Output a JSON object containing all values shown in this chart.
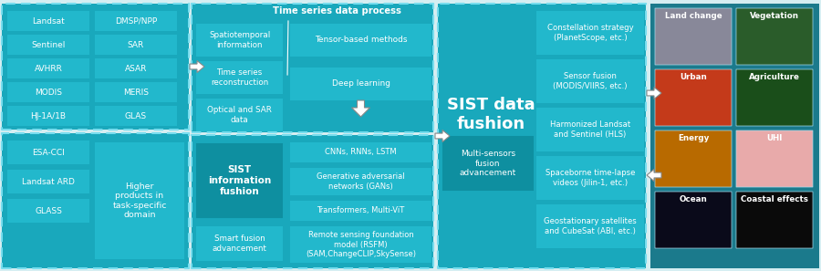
{
  "bg_color": "#d6eef2",
  "teal_bg": "#19a8bc",
  "teal_box": "#22b8cc",
  "teal_dark_box": "#0e8fa0",
  "teal_panel_bg": "#17a0b4",
  "image_panel_bg": "#1b7a8c",
  "white": "#ffffff",
  "figsize": [
    9.0,
    2.97
  ],
  "dpi": 100,
  "col1_sensors": [
    "Landsat",
    "DMSP/NPP",
    "Sentinel",
    "SAR",
    "AVHRR",
    "ASAR",
    "MODIS",
    "MERIS",
    "HJ-1A/1B",
    "GLAS"
  ],
  "col1_products": [
    "ESA-CCI",
    "Landsat ARD",
    "GLASS"
  ],
  "col1_product_right": "Higher\nproducts in\ntask-specific\ndomain",
  "col2_top_label": "Time series data process",
  "col2_top_left": [
    "Spatiotemporal\ninformation",
    "Time series\nreconstruction",
    "Optical and SAR\ndata"
  ],
  "col2_top_right": [
    "Tensor-based methods",
    "Deep learning"
  ],
  "col2_bot_label": "SIST\ninformation\nfushion",
  "col2_bot_sublabel": "Smart fusion\nadvancement",
  "col2_bot_right": [
    "CNNs, RNNs, LSTM",
    "Generative adversarial\nnetworks (GANs)",
    "Transformers, Multi-ViT",
    "Remote sensing foundation\nmodel (RSFM)\n(SAM,ChangeCLIP,SkySense)"
  ],
  "col3_label": "SIST data\nfushion",
  "col3_left": "Multi-sensors\nfusion\nadvancement",
  "col3_right": [
    "Constellation strategy\n(PlanetScope, etc.)",
    "Sensor fusion\n(MODIS/VIIRS, etc.)",
    "Harmonized Landsat\nand Sentinel (HLS)",
    "Spaceborne time-lapse\nvideos (Jilin-1, etc.)",
    "Geostationary satellites\nand CubeSat (ABI, etc.)"
  ],
  "col4_labels": [
    "Land change",
    "Vegetation",
    "Urban",
    "Agriculture",
    "Energy",
    "UHI",
    "Ocean",
    "Coastal effects"
  ],
  "col4_img_colors": [
    "#888899",
    "#2a5c2a",
    "#c43a1a",
    "#1a4e1a",
    "#b86a00",
    "#e8aaaa",
    "#0a0a1a",
    "#0a0a0a"
  ]
}
